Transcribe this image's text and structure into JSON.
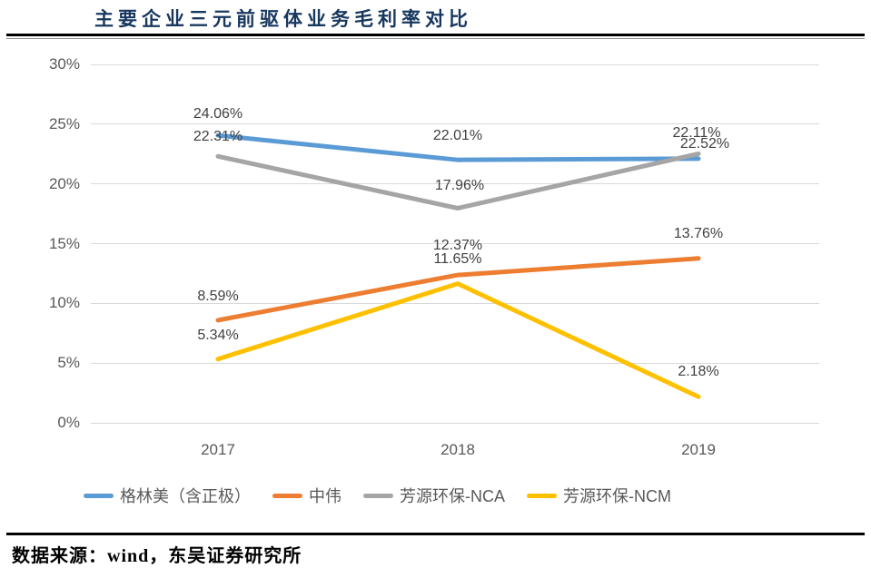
{
  "title": "主要企业三元前驱体业务毛利率对比",
  "footer": {
    "source_label": "数据来源：wind，东吴证券研究所"
  },
  "colors": {
    "title_text": "#17375E",
    "rule": "#000000",
    "gridline": "#D9D9D9",
    "axis_text": "#595959",
    "data_label_text": "#404040",
    "series_blue": "#5B9BD5",
    "series_orange": "#ED7D31",
    "series_gray": "#A5A5A5",
    "series_yellow": "#FFC000"
  },
  "chart_data": {
    "type": "line",
    "title": "主要企业三元前驱体业务毛利率对比",
    "xlabel": "",
    "ylabel": "",
    "grid": true,
    "legend_position": "bottom",
    "ylim": [
      0,
      30
    ],
    "y_ticks": [
      {
        "label": "30%",
        "value": 30
      },
      {
        "label": "25%",
        "value": 25
      },
      {
        "label": "20%",
        "value": 20
      },
      {
        "label": "15%",
        "value": 15
      },
      {
        "label": "10%",
        "value": 10
      },
      {
        "label": "5%",
        "value": 5
      },
      {
        "label": "0%",
        "value": 0
      }
    ],
    "categories": [
      "2017",
      "2018",
      "2019"
    ],
    "series": [
      {
        "name": "格林美（含正极）",
        "color": "#5B9BD5",
        "values": [
          24.06,
          22.01,
          22.11
        ],
        "labels": [
          "24.06%",
          "22.01%",
          "22.11%"
        ],
        "label_dx": [
          0,
          0,
          -2
        ],
        "label_dy": [
          -23,
          -26,
          -28
        ]
      },
      {
        "name": "中伟",
        "color": "#ED7D31",
        "values": [
          8.59,
          12.37,
          13.76
        ],
        "labels": [
          "8.59%",
          "12.37%",
          "13.76%"
        ],
        "label_dx": [
          0,
          0,
          0
        ],
        "label_dy": [
          -26,
          -32,
          -27
        ]
      },
      {
        "name": "芳源环保-NCA",
        "color": "#A5A5A5",
        "values": [
          22.31,
          17.96,
          22.52
        ],
        "labels": [
          "22.31%",
          "17.96%",
          "22.52%"
        ],
        "label_dx": [
          0,
          2,
          7
        ],
        "label_dy": [
          -21,
          -25,
          -10
        ]
      },
      {
        "name": "芳源环保-NCM",
        "color": "#FFC000",
        "values": [
          5.34,
          11.65,
          2.18
        ],
        "labels": [
          "5.34%",
          "11.65%",
          "2.18%"
        ],
        "label_dx": [
          0,
          0,
          0
        ],
        "label_dy": [
          -26,
          -27,
          -27
        ]
      }
    ]
  }
}
